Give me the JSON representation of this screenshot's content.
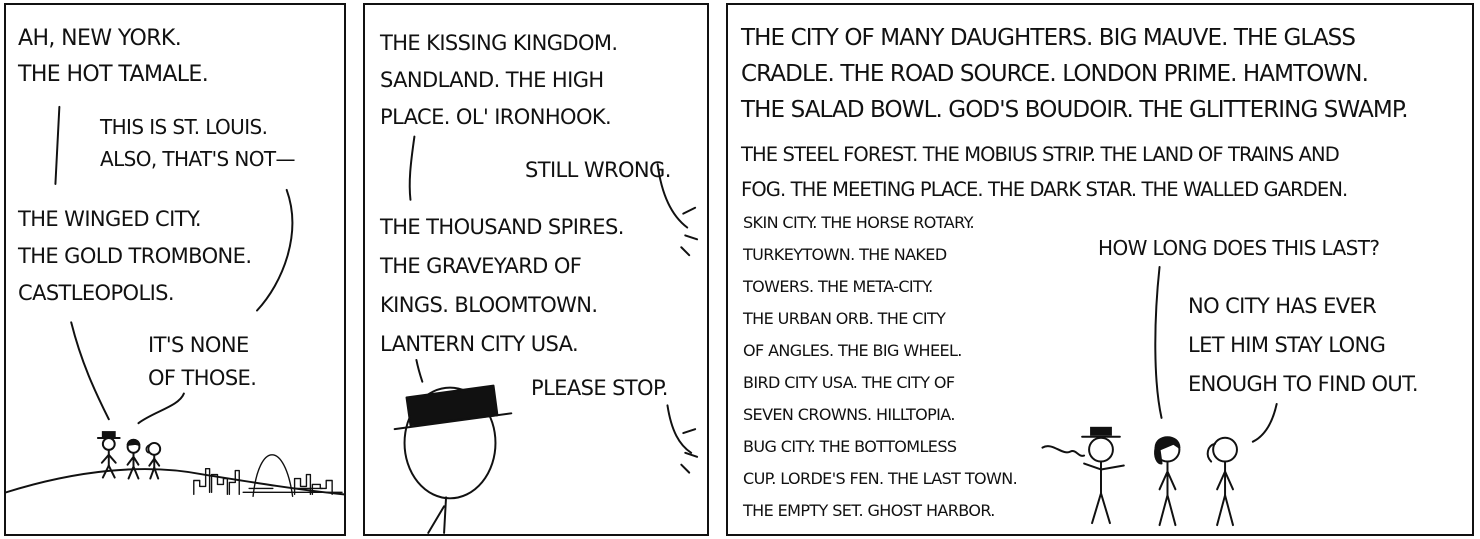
{
  "panels": [
    {
      "name": "panel-1",
      "captions": {
        "speaker_a": [
          "AH, NEW YORK.",
          "THE HOT TAMALE."
        ],
        "speaker_b": [
          "THIS IS ST. LOUIS.",
          "ALSO, THAT'S NOT—"
        ],
        "speaker_a2": [
          "THE WINGED CITY.",
          "THE GOLD TROMBONE.",
          "CASTLEOPOLIS."
        ],
        "speaker_c": [
          "IT'S NONE",
          "OF THOSE."
        ]
      }
    },
    {
      "name": "panel-2",
      "captions": {
        "speaker_a": [
          "THE KISSING KINGDOM.",
          "SANDLAND.  THE HIGH",
          "PLACE.  OL' IRONHOOK."
        ],
        "offscreen_1": [
          "STILL WRONG."
        ],
        "speaker_a2": [
          "THE THOUSAND SPIRES.",
          "THE GRAVEYARD OF",
          "KINGS.  BLOOMTOWN.",
          "LANTERN CITY USA."
        ],
        "offscreen_2": [
          "PLEASE STOP."
        ]
      }
    },
    {
      "name": "panel-3",
      "captions": {
        "list_large": [
          "THE CITY OF MANY DAUGHTERS. BIG MAUVE. THE GLASS",
          "CRADLE. THE ROAD SOURCE. LONDON PRIME. HAMTOWN.",
          "THE SALAD BOWL.  GOD'S BOUDOIR.  THE GLITTERING SWAMP."
        ],
        "list_medium": [
          "THE STEEL FOREST.  THE MOBIUS STRIP.  THE LAND OF TRAINS AND",
          "FOG.  THE MEETING PLACE.  THE DARK STAR.  THE WALLED GARDEN."
        ],
        "list_small": [
          "SKIN CITY.  THE HORSE ROTARY.",
          "TURKEYTOWN.  THE NAKED",
          "TOWERS.  THE META-CITY.",
          "THE URBAN ORB.  THE CITY",
          "OF ANGLES.  THE BIG WHEEL.",
          "BIRD CITY USA.  THE CITY OF",
          "SEVEN CROWNS.  HILLTOPIA.",
          "BUG CITY.  THE BOTTOMLESS",
          "CUP.  LORDE'S FEN.  THE LAST TOWN.",
          "THE EMPTY SET.  GHOST HARBOR."
        ],
        "question": [
          "HOW LONG DOES THIS LAST?"
        ],
        "answer": [
          "NO CITY HAS EVER",
          "LET HIM STAY LONG",
          "ENOUGH TO FIND OUT."
        ]
      }
    }
  ],
  "colors": {
    "ink": "#111111",
    "paper": "#ffffff"
  }
}
